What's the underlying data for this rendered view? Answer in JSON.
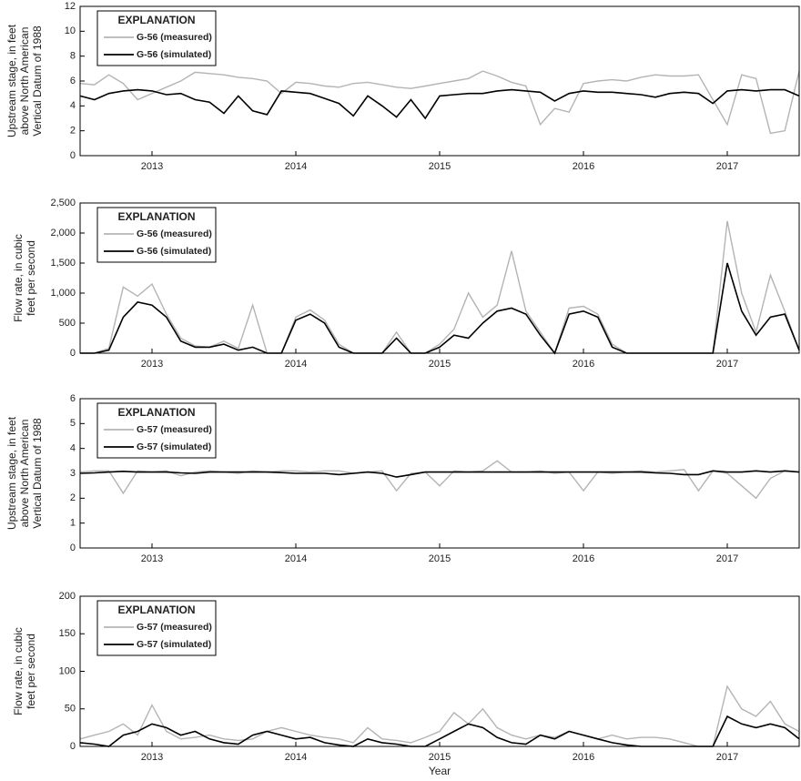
{
  "chart_data": [
    {
      "type": "line",
      "ylabel": [
        "Upstream stage, in feet",
        "above North American",
        "Vertical Datum of 1988"
      ],
      "legend_title": "EXPLANATION",
      "legend": "upper left",
      "x": [
        2013.0,
        2013.1,
        2013.2,
        2013.3,
        2013.4,
        2013.5,
        2013.6,
        2013.7,
        2013.8,
        2013.9,
        2014.0,
        2014.1,
        2014.2,
        2014.3,
        2014.4,
        2014.5,
        2014.6,
        2014.7,
        2014.8,
        2014.9,
        2015.0,
        2015.1,
        2015.2,
        2015.3,
        2015.4,
        2015.5,
        2015.6,
        2015.7,
        2015.8,
        2015.9,
        2016.0,
        2016.1,
        2016.2,
        2016.3,
        2016.4,
        2016.5,
        2016.6,
        2016.7,
        2016.8,
        2016.9,
        2017.0,
        2017.1,
        2017.2,
        2017.3,
        2017.4,
        2017.5,
        2017.6,
        2017.7,
        2017.8,
        2017.9,
        2018.0
      ],
      "xlim": [
        2013,
        2018
      ],
      "xticks": [
        {
          "value": 2013.5,
          "label": "2013"
        },
        {
          "value": 2014.5,
          "label": "2014"
        },
        {
          "value": 2015.5,
          "label": "2015"
        },
        {
          "value": 2016.5,
          "label": "2016"
        },
        {
          "value": 2017.5,
          "label": "2017"
        }
      ],
      "ylim": [
        0,
        12
      ],
      "yticks": [
        0,
        2,
        4,
        6,
        8,
        10,
        12
      ],
      "series": [
        {
          "name": "G-56 (measured)",
          "color": "#b4b4b4",
          "values": [
            5.8,
            5.7,
            6.5,
            5.8,
            4.5,
            5.0,
            5.5,
            6.0,
            6.7,
            6.6,
            6.5,
            6.3,
            6.2,
            6.0,
            5.0,
            5.9,
            5.8,
            5.6,
            5.5,
            5.8,
            5.9,
            5.7,
            5.5,
            5.4,
            5.6,
            5.8,
            6.0,
            6.2,
            6.8,
            6.4,
            5.9,
            5.6,
            2.5,
            3.8,
            3.5,
            5.8,
            6.0,
            6.1,
            6.0,
            6.3,
            6.5,
            6.4,
            6.4,
            6.5,
            4.5,
            2.5,
            6.5,
            6.2,
            1.8,
            2.0,
            6.8
          ]
        },
        {
          "name": "G-56 (simulated)",
          "color": "#000000",
          "values": [
            4.8,
            4.5,
            5.0,
            5.2,
            5.3,
            5.2,
            4.9,
            5.0,
            4.5,
            4.3,
            3.4,
            4.8,
            3.6,
            3.3,
            5.2,
            5.1,
            5.0,
            4.6,
            4.2,
            3.2,
            4.8,
            4.0,
            3.1,
            4.5,
            3.0,
            4.8,
            4.9,
            5.0,
            5.0,
            5.2,
            5.3,
            5.2,
            5.1,
            4.4,
            5.0,
            5.2,
            5.1,
            5.1,
            5.0,
            4.9,
            4.7,
            5.0,
            5.1,
            5.0,
            4.2,
            5.2,
            5.3,
            5.2,
            5.3,
            5.3,
            4.8
          ]
        }
      ]
    },
    {
      "type": "line",
      "ylabel": [
        "Flow rate, in cubic",
        "feet per second"
      ],
      "legend_title": "EXPLANATION",
      "legend": "upper left",
      "x": [
        2013.0,
        2013.1,
        2013.2,
        2013.3,
        2013.4,
        2013.5,
        2013.6,
        2013.7,
        2013.8,
        2013.9,
        2014.0,
        2014.1,
        2014.2,
        2014.3,
        2014.4,
        2014.5,
        2014.6,
        2014.7,
        2014.8,
        2014.9,
        2015.0,
        2015.1,
        2015.2,
        2015.3,
        2015.4,
        2015.5,
        2015.6,
        2015.7,
        2015.8,
        2015.9,
        2016.0,
        2016.1,
        2016.2,
        2016.3,
        2016.4,
        2016.5,
        2016.6,
        2016.7,
        2016.8,
        2016.9,
        2017.0,
        2017.1,
        2017.2,
        2017.3,
        2017.4,
        2017.5,
        2017.6,
        2017.7,
        2017.8,
        2017.9,
        2018.0
      ],
      "xlim": [
        2013,
        2018
      ],
      "xticks": [
        {
          "value": 2013.5,
          "label": "2013"
        },
        {
          "value": 2014.5,
          "label": "2014"
        },
        {
          "value": 2015.5,
          "label": "2015"
        },
        {
          "value": 2016.5,
          "label": "2016"
        },
        {
          "value": 2017.5,
          "label": "2017"
        }
      ],
      "ylim": [
        0,
        2500
      ],
      "yticks": [
        0,
        500,
        {
          "value": 1000,
          "label": "1,000"
        },
        {
          "value": 1500,
          "label": "1,500"
        },
        {
          "value": 2000,
          "label": "2,000"
        },
        {
          "value": 2500,
          "label": "2,500"
        }
      ],
      "series": [
        {
          "name": "G-56 (measured)",
          "color": "#b4b4b4",
          "values": [
            0,
            0,
            80,
            1100,
            950,
            1150,
            650,
            250,
            120,
            100,
            200,
            80,
            800,
            0,
            0,
            600,
            720,
            550,
            150,
            0,
            0,
            0,
            350,
            0,
            0,
            150,
            400,
            1000,
            600,
            800,
            1700,
            700,
            350,
            0,
            750,
            780,
            650,
            150,
            0,
            0,
            0,
            0,
            0,
            0,
            0,
            2200,
            1000,
            350,
            1300,
            700,
            50
          ]
        },
        {
          "name": "G-56 (simulated)",
          "color": "#000000",
          "values": [
            0,
            0,
            50,
            600,
            850,
            800,
            600,
            200,
            100,
            100,
            150,
            50,
            100,
            0,
            0,
            550,
            650,
            500,
            100,
            0,
            0,
            0,
            250,
            0,
            0,
            100,
            300,
            250,
            500,
            700,
            750,
            650,
            300,
            0,
            650,
            700,
            600,
            100,
            0,
            0,
            0,
            0,
            0,
            0,
            0,
            1500,
            700,
            300,
            600,
            650,
            50
          ]
        }
      ]
    },
    {
      "type": "line",
      "ylabel": [
        "Upstream stage, in feet",
        "above North American",
        "Vertical Datum of 1988"
      ],
      "legend_title": "EXPLANATION",
      "legend": "upper left",
      "x": [
        2013.0,
        2013.1,
        2013.2,
        2013.3,
        2013.4,
        2013.5,
        2013.6,
        2013.7,
        2013.8,
        2013.9,
        2014.0,
        2014.1,
        2014.2,
        2014.3,
        2014.4,
        2014.5,
        2014.6,
        2014.7,
        2014.8,
        2014.9,
        2015.0,
        2015.1,
        2015.2,
        2015.3,
        2015.4,
        2015.5,
        2015.6,
        2015.7,
        2015.8,
        2015.9,
        2016.0,
        2016.1,
        2016.2,
        2016.3,
        2016.4,
        2016.5,
        2016.6,
        2016.7,
        2016.8,
        2016.9,
        2017.0,
        2017.1,
        2017.2,
        2017.3,
        2017.4,
        2017.5,
        2017.6,
        2017.7,
        2017.8,
        2017.9,
        2018.0
      ],
      "xlim": [
        2013,
        2018
      ],
      "xticks": [
        {
          "value": 2013.5,
          "label": "2013"
        },
        {
          "value": 2014.5,
          "label": "2014"
        },
        {
          "value": 2015.5,
          "label": "2015"
        },
        {
          "value": 2016.5,
          "label": "2016"
        },
        {
          "value": 2017.5,
          "label": "2017"
        }
      ],
      "ylim": [
        0,
        6
      ],
      "yticks": [
        0,
        1,
        2,
        3,
        4,
        5,
        6
      ],
      "series": [
        {
          "name": "G-57 (measured)",
          "color": "#b4b4b4",
          "values": [
            3.05,
            3.1,
            3.1,
            2.2,
            3.1,
            3.05,
            3.1,
            2.9,
            3.05,
            3.1,
            3.05,
            3.0,
            3.1,
            3.05,
            3.1,
            3.1,
            3.05,
            3.1,
            3.1,
            3.0,
            3.05,
            3.1,
            2.3,
            3.0,
            3.05,
            2.5,
            3.1,
            3.05,
            3.1,
            3.5,
            3.05,
            3.05,
            3.1,
            3.0,
            3.05,
            2.3,
            3.05,
            3.0,
            3.05,
            3.1,
            3.05,
            3.1,
            3.15,
            2.3,
            3.1,
            3.0,
            2.5,
            2.0,
            2.8,
            3.1,
            3.05
          ]
        },
        {
          "name": "G-57 (simulated)",
          "color": "#000000",
          "values": [
            3.0,
            3.02,
            3.05,
            3.08,
            3.05,
            3.05,
            3.05,
            3.02,
            3.0,
            3.05,
            3.05,
            3.05,
            3.05,
            3.05,
            3.03,
            3.0,
            3.0,
            3.0,
            2.95,
            3.0,
            3.05,
            3.0,
            2.85,
            2.95,
            3.05,
            3.05,
            3.05,
            3.05,
            3.05,
            3.05,
            3.05,
            3.05,
            3.05,
            3.05,
            3.05,
            3.05,
            3.05,
            3.05,
            3.05,
            3.05,
            3.02,
            3.0,
            2.95,
            2.95,
            3.1,
            3.05,
            3.05,
            3.1,
            3.05,
            3.1,
            3.05
          ]
        }
      ]
    },
    {
      "type": "line",
      "ylabel": [
        "Flow rate, in cubic",
        "feet per second"
      ],
      "xlabel": "Year",
      "legend_title": "EXPLANATION",
      "legend": "upper left",
      "x": [
        2013.0,
        2013.1,
        2013.2,
        2013.3,
        2013.4,
        2013.5,
        2013.6,
        2013.7,
        2013.8,
        2013.9,
        2014.0,
        2014.1,
        2014.2,
        2014.3,
        2014.4,
        2014.5,
        2014.6,
        2014.7,
        2014.8,
        2014.9,
        2015.0,
        2015.1,
        2015.2,
        2015.3,
        2015.4,
        2015.5,
        2015.6,
        2015.7,
        2015.8,
        2015.9,
        2016.0,
        2016.1,
        2016.2,
        2016.3,
        2016.4,
        2016.5,
        2016.6,
        2016.7,
        2016.8,
        2016.9,
        2017.0,
        2017.1,
        2017.2,
        2017.3,
        2017.4,
        2017.5,
        2017.6,
        2017.7,
        2017.8,
        2017.9,
        2018.0
      ],
      "xlim": [
        2013,
        2018
      ],
      "xticks": [
        {
          "value": 2013.5,
          "label": "2013"
        },
        {
          "value": 2014.5,
          "label": "2014"
        },
        {
          "value": 2015.5,
          "label": "2015"
        },
        {
          "value": 2016.5,
          "label": "2016"
        },
        {
          "value": 2017.5,
          "label": "2017"
        }
      ],
      "ylim": [
        0,
        200
      ],
      "yticks": [
        0,
        50,
        100,
        150,
        200
      ],
      "series": [
        {
          "name": "G-57 (measured)",
          "color": "#b4b4b4",
          "values": [
            10,
            15,
            20,
            30,
            15,
            55,
            20,
            10,
            12,
            15,
            10,
            8,
            10,
            20,
            25,
            20,
            15,
            12,
            10,
            5,
            25,
            10,
            8,
            5,
            12,
            20,
            45,
            30,
            50,
            25,
            15,
            10,
            15,
            12,
            20,
            15,
            10,
            15,
            10,
            12,
            12,
            10,
            5,
            0,
            0,
            80,
            50,
            40,
            60,
            30,
            20
          ]
        },
        {
          "name": "G-57 (simulated)",
          "color": "#000000",
          "values": [
            5,
            3,
            0,
            15,
            20,
            30,
            25,
            15,
            20,
            10,
            5,
            3,
            15,
            20,
            15,
            10,
            12,
            5,
            2,
            0,
            10,
            5,
            3,
            0,
            0,
            10,
            20,
            30,
            25,
            12,
            5,
            3,
            15,
            10,
            20,
            15,
            10,
            5,
            2,
            0,
            0,
            0,
            0,
            0,
            0,
            40,
            30,
            25,
            30,
            25,
            10
          ]
        }
      ]
    }
  ]
}
